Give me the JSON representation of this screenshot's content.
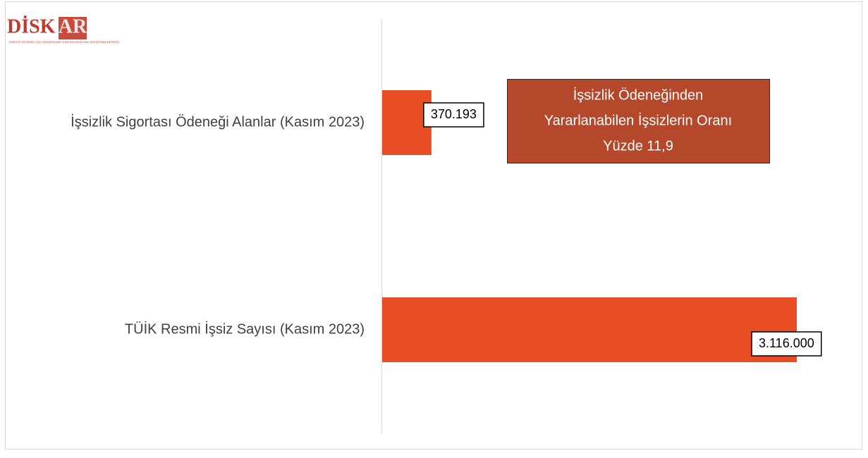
{
  "logo": {
    "text": "DİSK",
    "accent": "AR",
    "tagline": "TÜRKİYE DEVRİMCİ İŞÇİ SENDİKALARI KONFEDERASYONU ARAŞTIRMA MERKEZİ"
  },
  "chart_data": {
    "type": "bar",
    "orientation": "horizontal",
    "categories": [
      "İşsizlik Sigortası Ödeneği Alanlar (Kasım 2023)",
      "TÜİK Resmi İşsiz Sayısı (Kasım 2023)"
    ],
    "values": [
      370193,
      3116000
    ],
    "value_labels": [
      "370.193",
      "3.116.000"
    ],
    "color": "#e84e24",
    "annotation": [
      "İşsizlik Ödeneğinden",
      "Yararlanabilen İşsizlerin Oranı",
      "Yüzde 11,9"
    ],
    "annotation_color": "#b5472a"
  }
}
